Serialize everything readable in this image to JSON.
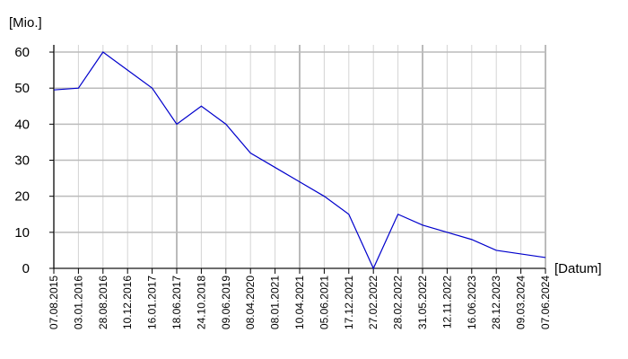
{
  "chart_data": {
    "type": "line",
    "y_label": "[Mio.]",
    "x_label": "[Datum]",
    "categories": [
      "07.08.2015",
      "03.01.2016",
      "28.08.2016",
      "10.12.2016",
      "16.01.2017",
      "18.06.2017",
      "24.10.2018",
      "09.06.2019",
      "08.04.2020",
      "08.01.2021",
      "10.04.2021",
      "05.06.2021",
      "17.12.2021",
      "27.02.2022",
      "28.02.2022",
      "31.05.2022",
      "12.11.2022",
      "16.06.2023",
      "28.12.2023",
      "09.03.2024",
      "07.06.2024"
    ],
    "series": [
      {
        "color": "#0000cc",
        "values": [
          49.5,
          50,
          60,
          55,
          50,
          40,
          45,
          40,
          32,
          28,
          24,
          20,
          15,
          0,
          15,
          12,
          10,
          8,
          5,
          4,
          3
        ]
      }
    ],
    "ylim": [
      0,
      62
    ],
    "yticks": [
      0,
      10,
      20,
      30,
      40,
      50,
      60
    ],
    "grid": true
  }
}
